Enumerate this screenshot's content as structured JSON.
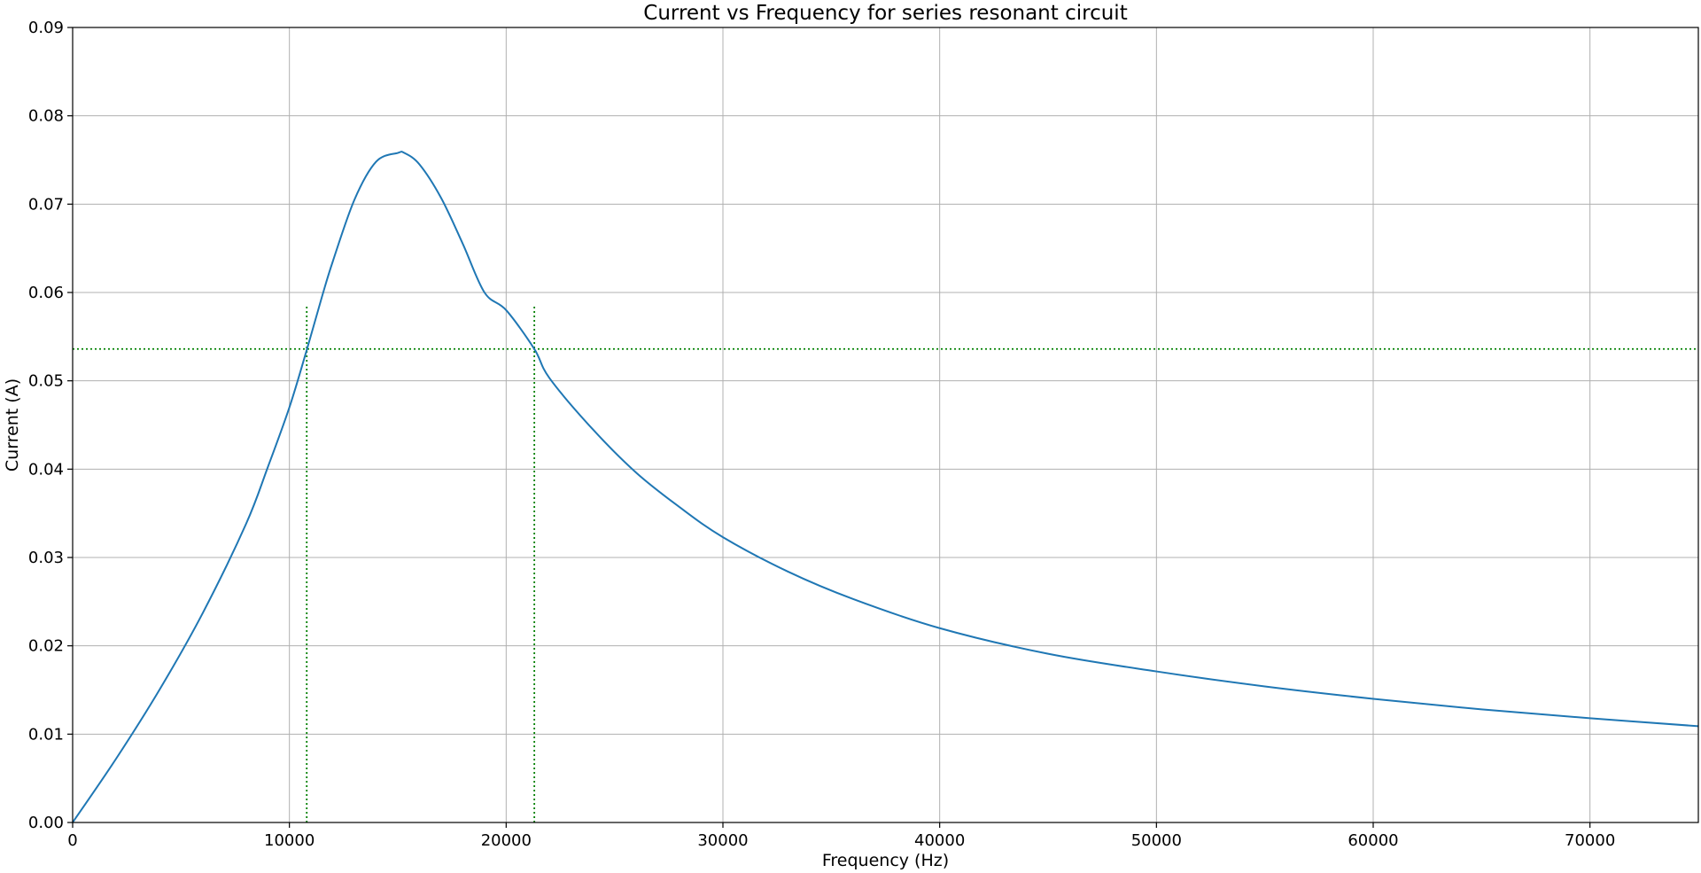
{
  "chart_data": {
    "type": "line",
    "title": "Current vs Frequency for series resonant circuit",
    "xlabel": "Frequency (Hz)",
    "ylabel": "Current (A)",
    "xlim": [
      0,
      75000
    ],
    "ylim": [
      0,
      0.09
    ],
    "grid": true,
    "x_ticks": [
      "0",
      "10000",
      "20000",
      "30000",
      "40000",
      "50000",
      "60000",
      "70000"
    ],
    "y_ticks": [
      "0.00",
      "0.01",
      "0.02",
      "0.03",
      "0.04",
      "0.05",
      "0.06",
      "0.07",
      "0.08",
      "0.09"
    ],
    "series": [
      {
        "color": "#1f77b4",
        "x": [
          0,
          2000,
          4000,
          6000,
          8000,
          9000,
          10000,
          10800,
          11500,
          12000,
          13000,
          14000,
          15000,
          15300,
          16000,
          17000,
          18000,
          19000,
          20000,
          21300,
          22000,
          24000,
          26000,
          28000,
          30000,
          33000,
          36000,
          40000,
          45000,
          50000,
          55000,
          60000,
          65000,
          70000,
          75000
        ],
        "y": [
          0,
          0.0072,
          0.015,
          0.0237,
          0.0338,
          0.0402,
          0.047,
          0.0535,
          0.0595,
          0.0635,
          0.0705,
          0.0748,
          0.0758,
          0.0758,
          0.0745,
          0.0707,
          0.0655,
          0.06,
          0.058,
          0.0536,
          0.0503,
          0.0445,
          0.0396,
          0.0357,
          0.0323,
          0.0284,
          0.0253,
          0.022,
          0.0191,
          0.0171,
          0.0154,
          0.014,
          0.0128,
          0.0118,
          0.0109
        ]
      }
    ],
    "reference_lines": {
      "color": "#008000",
      "horizontal_y": 0.0536,
      "vertical": [
        {
          "x": 10800,
          "y_top": 0.0585
        },
        {
          "x": 21300,
          "y_top": 0.0585
        }
      ]
    }
  }
}
